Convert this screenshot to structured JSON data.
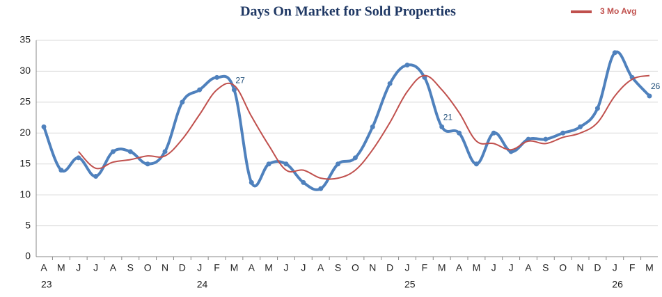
{
  "chart_data": {
    "type": "line",
    "title": "Days On Market for Sold Properties",
    "categories": [
      "A",
      "M",
      "J",
      "J",
      "A",
      "S",
      "O",
      "N",
      "D",
      "J",
      "F",
      "M",
      "A",
      "M",
      "J",
      "J",
      "A",
      "S",
      "O",
      "N",
      "D",
      "J",
      "F",
      "M",
      "A",
      "M",
      "J",
      "J",
      "A",
      "S",
      "O",
      "N",
      "D",
      "J",
      "F",
      "M"
    ],
    "category_groups": [
      "23",
      null,
      null,
      null,
      null,
      null,
      null,
      null,
      null,
      "24",
      null,
      null,
      null,
      null,
      null,
      null,
      null,
      null,
      null,
      null,
      null,
      "25",
      null,
      null,
      null,
      null,
      null,
      null,
      null,
      null,
      null,
      null,
      null,
      "26",
      null,
      null
    ],
    "series": [
      {
        "color": "#4f81bd",
        "markers": true,
        "labeled_points": [
          11,
          23,
          35
        ],
        "values": [
          21,
          14,
          16,
          13,
          17,
          17,
          15,
          17,
          25,
          27,
          29,
          27,
          12,
          15,
          15,
          12,
          11,
          15,
          16,
          21,
          28,
          31,
          29,
          21,
          20,
          15,
          20,
          17,
          19,
          19,
          20,
          21,
          24,
          33,
          29,
          26
        ]
      },
      {
        "name": "3 Mo Avg",
        "color": "#c0504d",
        "markers": false,
        "values": [
          null,
          null,
          17,
          14.3,
          15.3,
          15.7,
          16.3,
          16.3,
          19,
          23,
          27,
          27.7,
          22.7,
          18,
          14,
          14,
          12.7,
          12.7,
          14,
          17.3,
          21.7,
          26.7,
          29.3,
          27,
          23.3,
          18.7,
          18.3,
          17.3,
          18.7,
          18.3,
          19.3,
          20,
          21.7,
          26,
          28.7,
          29.3
        ]
      }
    ],
    "ylim": [
      0,
      35
    ],
    "yticks": [
      0,
      5,
      10,
      15,
      20,
      25,
      30,
      35
    ],
    "grid": true,
    "legend": "top-right"
  }
}
